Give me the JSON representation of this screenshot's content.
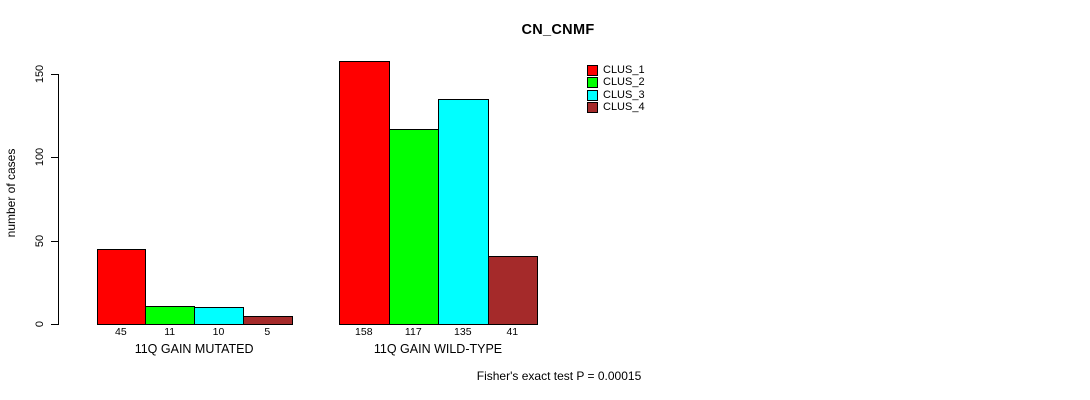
{
  "chart_data": {
    "type": "bar",
    "title": "CN_CNMF",
    "ylabel": "number of cases",
    "xlabel": "",
    "ylim": [
      0,
      150
    ],
    "yticks": [
      0,
      50,
      100,
      150
    ],
    "grid": false,
    "legend_position": "top-right",
    "categories": [
      "11Q GAIN MUTATED",
      "11Q GAIN WILD-TYPE"
    ],
    "groups": [
      {
        "label": "11Q GAIN MUTATED",
        "values": [
          45,
          11,
          10,
          5
        ]
      },
      {
        "label": "11Q GAIN WILD-TYPE",
        "values": [
          158,
          117,
          135,
          41
        ]
      }
    ],
    "series": [
      {
        "name": "CLUS_1",
        "color": "#FF0000",
        "values": [
          45,
          158
        ]
      },
      {
        "name": "CLUS_2",
        "color": "#00FF00",
        "values": [
          11,
          117
        ]
      },
      {
        "name": "CLUS_3",
        "color": "#00FFFF",
        "values": [
          10,
          135
        ]
      },
      {
        "name": "CLUS_4",
        "color": "#A52A2A",
        "values": [
          5,
          41
        ]
      }
    ],
    "footnote": "Fisher's exact test P = 0.00015"
  }
}
